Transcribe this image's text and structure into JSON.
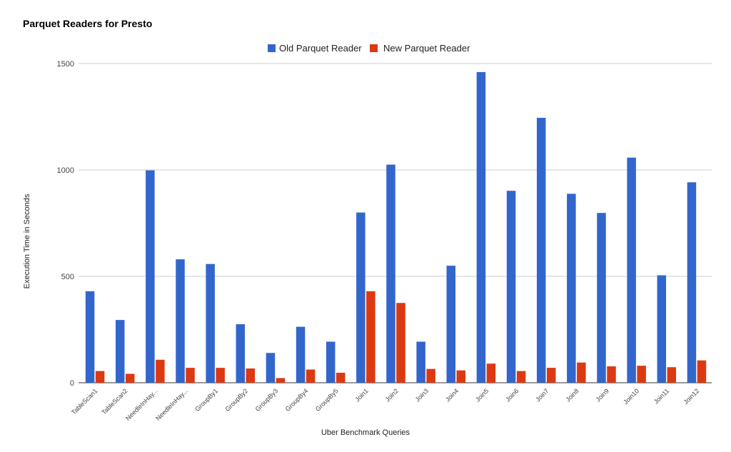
{
  "chart_data": {
    "type": "bar",
    "title": "Parquet Readers for Presto",
    "xlabel": "Uber Benchmark Queries",
    "ylabel": "Execution Time in Seconds",
    "ylim": [
      0,
      1500
    ],
    "yticks": [
      0,
      500,
      1000,
      1500
    ],
    "grid": true,
    "legend_position": "top",
    "categories": [
      "TableScan1",
      "TableScan2",
      "NeedleInHay...",
      "NeedleInHay...",
      "GroupBy1",
      "GroupBy2",
      "GroupBy3",
      "GroupBy4",
      "GroupBy5",
      "Join1",
      "Join2",
      "Join3",
      "Join4",
      "Join5",
      "Join6",
      "Join7",
      "Join8",
      "Join9",
      "Join10",
      "Join11",
      "Join12"
    ],
    "series": [
      {
        "name": "Old Parquet Reader",
        "color": "#3366cc",
        "values": [
          430,
          295,
          998,
          580,
          558,
          275,
          140,
          263,
          193,
          800,
          1025,
          193,
          550,
          1460,
          902,
          1245,
          888,
          798,
          1058,
          505,
          942
        ]
      },
      {
        "name": "New Parquet Reader",
        "color": "#dc3912",
        "values": [
          55,
          42,
          108,
          70,
          70,
          67,
          22,
          62,
          47,
          430,
          375,
          65,
          58,
          90,
          55,
          70,
          95,
          77,
          80,
          73,
          105
        ]
      }
    ]
  }
}
